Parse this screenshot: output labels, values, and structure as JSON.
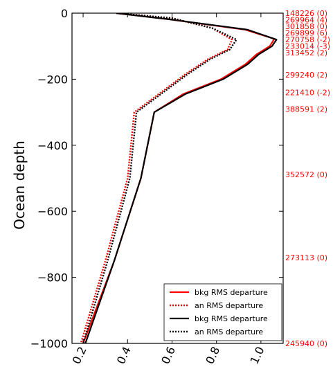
{
  "chart_data": {
    "type": "line",
    "title": "",
    "xlabel": "",
    "ylabel": "Ocean depth",
    "xlim": [
      0.15,
      1.1
    ],
    "ylim": [
      -1000,
      0
    ],
    "xticks": [
      "0.2",
      "0.4",
      "0.6",
      "0.8",
      "1.0"
    ],
    "xtick_values": [
      0.2,
      0.4,
      0.6,
      0.8,
      1.0
    ],
    "yticks": [
      "0",
      "−200",
      "−400",
      "−600",
      "−800",
      "−1000"
    ],
    "ytick_values": [
      0,
      -200,
      -400,
      -600,
      -800,
      -1000
    ],
    "grid": false,
    "legend_position": "lower-right",
    "series": [
      {
        "name": "bkg RMS departure",
        "color": "#ff0000",
        "style": "solid",
        "points": [
          [
            0.35,
            0
          ],
          [
            0.58,
            -18
          ],
          [
            0.93,
            -50
          ],
          [
            1.06,
            -78
          ],
          [
            1.04,
            -100
          ],
          [
            0.98,
            -125
          ],
          [
            0.93,
            -155
          ],
          [
            0.82,
            -200
          ],
          [
            0.65,
            -245
          ],
          [
            0.52,
            -300
          ],
          [
            0.46,
            -500
          ],
          [
            0.34,
            -750
          ],
          [
            0.2,
            -1000
          ]
        ]
      },
      {
        "name": "an RMS departure",
        "color": "#ff0000",
        "style": "dotted",
        "points": [
          [
            0.35,
            0
          ],
          [
            0.6,
            -15
          ],
          [
            0.78,
            -45
          ],
          [
            0.87,
            -80
          ],
          [
            0.85,
            -110
          ],
          [
            0.76,
            -140
          ],
          [
            0.66,
            -185
          ],
          [
            0.55,
            -240
          ],
          [
            0.43,
            -300
          ],
          [
            0.4,
            -500
          ],
          [
            0.3,
            -750
          ],
          [
            0.19,
            -1000
          ]
        ]
      },
      {
        "name": "bkg RMS departure",
        "color": "#000000",
        "style": "solid",
        "points": [
          [
            0.35,
            0
          ],
          [
            0.58,
            -18
          ],
          [
            0.94,
            -50
          ],
          [
            1.07,
            -80
          ],
          [
            1.05,
            -100
          ],
          [
            0.99,
            -125
          ],
          [
            0.94,
            -155
          ],
          [
            0.83,
            -200
          ],
          [
            0.66,
            -245
          ],
          [
            0.52,
            -300
          ],
          [
            0.46,
            -500
          ],
          [
            0.34,
            -750
          ],
          [
            0.21,
            -1000
          ]
        ]
      },
      {
        "name": "an RMS departure",
        "color": "#000000",
        "style": "dotted",
        "points": [
          [
            0.35,
            0
          ],
          [
            0.6,
            -15
          ],
          [
            0.78,
            -45
          ],
          [
            0.89,
            -80
          ],
          [
            0.86,
            -110
          ],
          [
            0.77,
            -140
          ],
          [
            0.67,
            -185
          ],
          [
            0.56,
            -240
          ],
          [
            0.44,
            -300
          ],
          [
            0.41,
            -500
          ],
          [
            0.31,
            -750
          ],
          [
            0.2,
            -1000
          ]
        ]
      }
    ],
    "count_labels": [
      {
        "text": "148226 (0)",
        "depth": 0
      },
      {
        "text": "269964 (4)",
        "depth": -20
      },
      {
        "text": "301858 (0)",
        "depth": -40
      },
      {
        "text": "269899 (6)",
        "depth": -60
      },
      {
        "text": "270758 (-2)",
        "depth": -80
      },
      {
        "text": "233014 (-3)",
        "depth": -100
      },
      {
        "text": "313452 (2)",
        "depth": -120
      },
      {
        "text": "299240 (2)",
        "depth": -187
      },
      {
        "text": "221410 (-2)",
        "depth": -240
      },
      {
        "text": "388591 (2)",
        "depth": -290
      },
      {
        "text": "352572 (0)",
        "depth": -488
      },
      {
        "text": "273113 (0)",
        "depth": -740
      },
      {
        "text": "245940 (0)",
        "depth": -1000
      }
    ]
  }
}
